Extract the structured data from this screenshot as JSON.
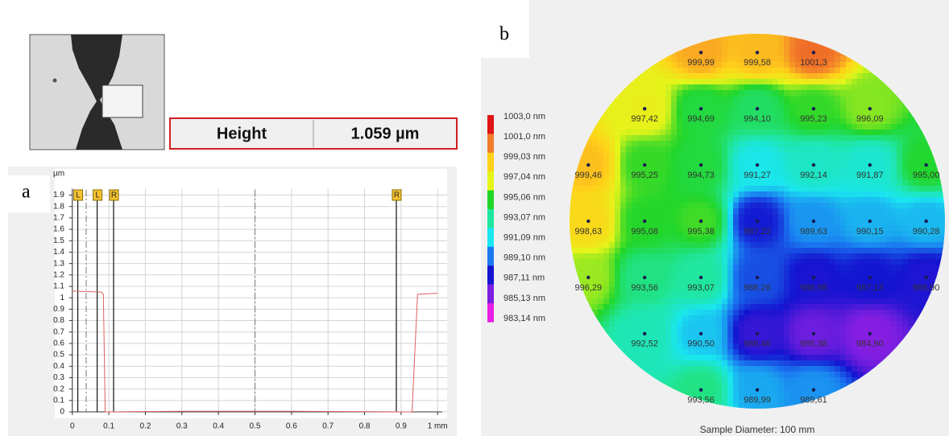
{
  "panel_labels": [
    "a",
    "b"
  ],
  "height_readout": {
    "label": "Height",
    "value": "1.059 µm"
  },
  "chart_data": [
    {
      "type": "line",
      "y_unit": "µm",
      "x": [
        0,
        0.08,
        0.085,
        0.09,
        0.3,
        0.6,
        0.93,
        0.945,
        1.0
      ],
      "values": [
        1.06,
        1.05,
        1.03,
        0.0,
        0.005,
        0.005,
        0.0,
        1.03,
        1.04
      ],
      "color": "#e06060",
      "xlim": [
        -0.048,
        1.026
      ],
      "ylim": [
        -0.035,
        1.96
      ],
      "xticks": [
        0,
        0.1,
        0.2,
        0.3,
        0.4,
        0.5,
        0.6,
        0.7,
        0.8,
        0.9,
        {
          "value": 1,
          "label": "1 mm"
        }
      ],
      "yticks": [
        0,
        0.1,
        0.2,
        0.3,
        0.4,
        0.5,
        0.6,
        0.7,
        0.8,
        0.9,
        1,
        1.1,
        1.2,
        1.3,
        1.4,
        1.5,
        1.6,
        1.7,
        1.8,
        1.9
      ],
      "grid": true,
      "cursors": [
        {
          "label": "L",
          "x": 0.015
        },
        {
          "label": "L",
          "x": 0.068
        },
        {
          "label": "R",
          "x": 0.113
        },
        {
          "label": "R",
          "x": 0.887
        }
      ],
      "reference_lines": [
        0.038,
        0.5
      ]
    },
    {
      "type": "wafer_map",
      "caption": "Sample Diameter: 100 mm",
      "xlim": [
        -50,
        50
      ],
      "ylim": [
        -50,
        50
      ],
      "x": [
        -15,
        0,
        15,
        -30,
        -15,
        0,
        15,
        30,
        -45,
        -30,
        -15,
        0,
        15,
        30,
        45,
        -45,
        -30,
        -15,
        0,
        15,
        30,
        45,
        -45,
        -30,
        -15,
        0,
        15,
        30,
        45,
        -30,
        -15,
        0,
        15,
        30,
        -15,
        0,
        15
      ],
      "y": [
        45,
        45,
        45,
        30,
        30,
        30,
        30,
        30,
        15,
        15,
        15,
        15,
        15,
        15,
        15,
        0,
        0,
        0,
        0,
        0,
        0,
        0,
        -15,
        -15,
        -15,
        -15,
        -15,
        -15,
        -15,
        -30,
        -30,
        -30,
        -30,
        -30,
        -45,
        -45,
        -45
      ],
      "values": [
        999.99,
        999.58,
        1001.3,
        997.42,
        994.69,
        994.1,
        995.23,
        996.09,
        999.46,
        995.25,
        994.73,
        991.27,
        992.14,
        991.87,
        995.0,
        998.63,
        995.08,
        995.38,
        987.22,
        989.63,
        990.15,
        990.28,
        996.29,
        993.56,
        993.07,
        988.28,
        986.98,
        987.13,
        986.9,
        992.52,
        990.5,
        986.46,
        985.38,
        984.9,
        993.56,
        989.99,
        989.61
      ],
      "value_labels": [
        "999,99",
        "999,58",
        "1001,3",
        "997,42",
        "994,69",
        "994,10",
        "995,23",
        "996,09",
        "999,46",
        "995,25",
        "994,73",
        "991,27",
        "992,14",
        "991,87",
        "995,00",
        "998,63",
        "995,08",
        "995,38",
        "987,22",
        "989,63",
        "990,15",
        "990,28",
        "996,29",
        "993,56",
        "993,07",
        "988,28",
        "986,98",
        "987,13",
        "986,90",
        "992,52",
        "990,50",
        "986,46",
        "985,38",
        "984,90",
        "993,56",
        "989,99",
        "989,61"
      ],
      "colorbar": {
        "ticks": [
          {
            "value": 1003.0,
            "label": "1003,0 nm"
          },
          {
            "value": 1001.0,
            "label": "1001,0 nm"
          },
          {
            "value": 999.03,
            "label": "999,03 nm"
          },
          {
            "value": 997.04,
            "label": "997,04 nm"
          },
          {
            "value": 995.06,
            "label": "995,06 nm"
          },
          {
            "value": 993.07,
            "label": "993,07 nm"
          },
          {
            "value": 991.09,
            "label": "991,09 nm"
          },
          {
            "value": 989.1,
            "label": "989,10 nm"
          },
          {
            "value": 987.11,
            "label": "987,11 nm"
          },
          {
            "value": 985.13,
            "label": "985,13 nm"
          },
          {
            "value": 983.14,
            "label": "983,14 nm"
          }
        ],
        "colors": [
          "#e01515",
          "#f27d2a",
          "#ffd21a",
          "#e4f51a",
          "#22d62a",
          "#20e6a0",
          "#1ae6f0",
          "#1a78f0",
          "#1414d0",
          "#7a1ee0",
          "#e61ee6"
        ]
      }
    }
  ]
}
